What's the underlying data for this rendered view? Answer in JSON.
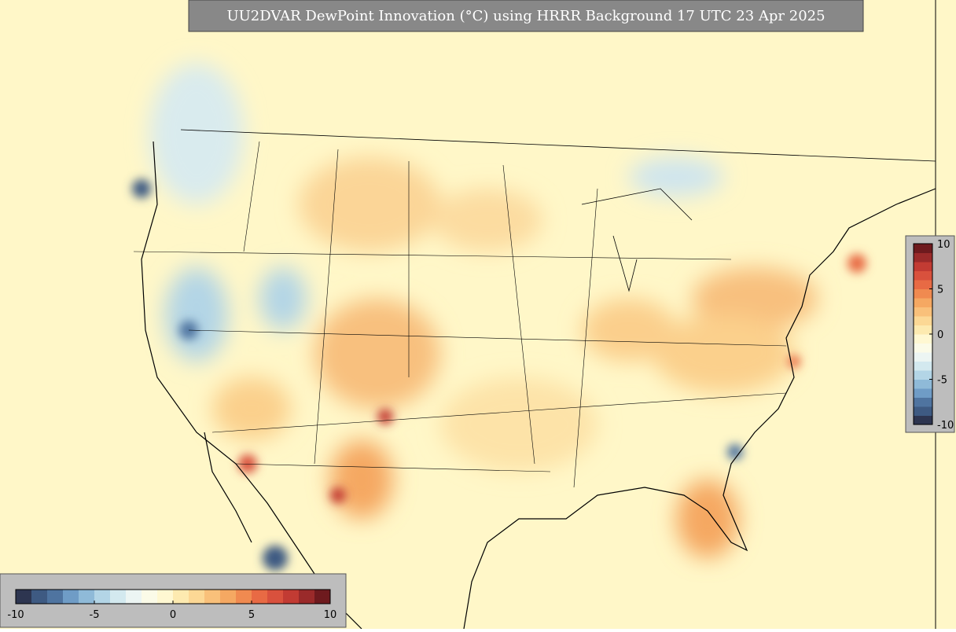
{
  "title": "UU2DVAR DewPoint Innovation (°C) using HRRR Background 17 UTC 23 Apr 2025",
  "colorbar": {
    "range": [
      -10,
      10
    ],
    "ticks": [
      -10,
      -5,
      0,
      5,
      10
    ],
    "colors": [
      "#2d3550",
      "#3e5a82",
      "#4f74a0",
      "#6f9cc6",
      "#8fbad8",
      "#b3d5e6",
      "#d3e9ef",
      "#ecf5f3",
      "#fbfbe8",
      "#fff8d2",
      "#fdeab0",
      "#fcd895",
      "#f9c07a",
      "#f5a862",
      "#f08a50",
      "#e86a44",
      "#d9513d",
      "#c23b33",
      "#9a2a2a",
      "#6e1a1e"
    ]
  }
}
